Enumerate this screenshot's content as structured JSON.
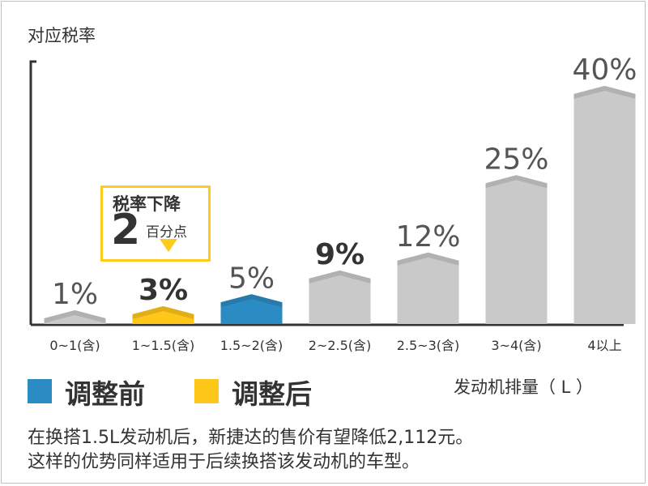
{
  "chart_data": {
    "type": "bar",
    "ylabel": "对应税率",
    "xlabel": "发动机排量（ L ）",
    "categories": [
      "0~1(含)",
      "1~1.5(含)",
      "1.5~2(含)",
      "2~2.5(含)",
      "2.5~3(含)",
      "3~4(含)",
      "4以上"
    ],
    "values": [
      1,
      3,
      5,
      9,
      12,
      25,
      40
    ],
    "value_labels": [
      "1%",
      "3%",
      "5%",
      "9%",
      "12%",
      "25%",
      "40%"
    ],
    "bar_roles": [
      "other",
      "after",
      "before",
      "other",
      "other",
      "other",
      "other"
    ],
    "ylim": [
      0,
      40
    ],
    "grid": false,
    "legend_position": "bottom-left"
  },
  "colors": {
    "before": "#2b8cc4",
    "after": "#ffc71a",
    "other": "#c9c9c9",
    "axis": "#333333"
  },
  "legend": {
    "before": "调整前",
    "after": "调整后"
  },
  "callout": {
    "title": "税率下降",
    "number": "2",
    "unit": "百分点"
  },
  "note": {
    "line1": "在换搭1.5L发动机后，新捷达的售价有望降低2,112元。",
    "line2": "这样的优势同样适用于后续换搭该发动机的车型。"
  }
}
